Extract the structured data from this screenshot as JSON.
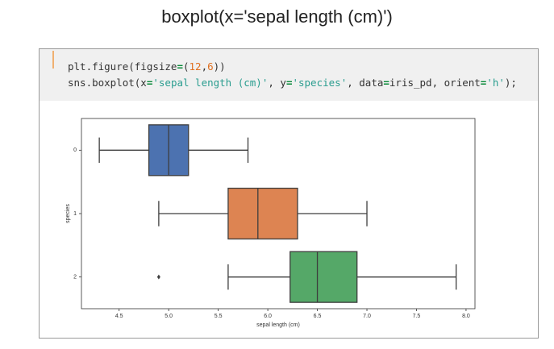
{
  "title": "boxplot(x='sepal length (cm)')",
  "code": {
    "lines": [
      [
        "plt.figure(figsize",
        "=",
        "(",
        "12",
        ",",
        "6",
        "))"
      ],
      [
        "sns.boxplot(x",
        "=",
        "'sepal length (cm)'",
        ", y",
        "=",
        "'species'",
        ", data",
        "=",
        "iris_pd, orient",
        "=",
        "'h'",
        ");"
      ]
    ]
  },
  "chart_data": {
    "type": "boxplot",
    "orientation": "horizontal",
    "xlabel": "sepal length (cm)",
    "ylabel": "species",
    "categories": [
      "0",
      "1",
      "2"
    ],
    "colors": [
      "#4c72b0",
      "#dd8452",
      "#55a868"
    ],
    "boxes": [
      {
        "min": 4.3,
        "q1": 4.8,
        "median": 5.0,
        "q3": 5.2,
        "max": 5.8,
        "outliers": []
      },
      {
        "min": 4.9,
        "q1": 5.6,
        "median": 5.9,
        "q3": 6.3,
        "max": 7.0,
        "outliers": []
      },
      {
        "min": 5.6,
        "q1": 6.225,
        "median": 6.5,
        "q3": 6.9,
        "max": 7.9,
        "outliers": [
          4.9
        ]
      }
    ],
    "xlim": [
      4.12,
      8.09
    ],
    "xticks": [
      4.5,
      {
        "value": 5,
        "label": "5.0"
      },
      5.5,
      {
        "value": 6,
        "label": "6.0"
      },
      6.5,
      {
        "value": 7,
        "label": "7.0"
      },
      7.5,
      {
        "value": 8,
        "label": "8.0"
      }
    ]
  }
}
